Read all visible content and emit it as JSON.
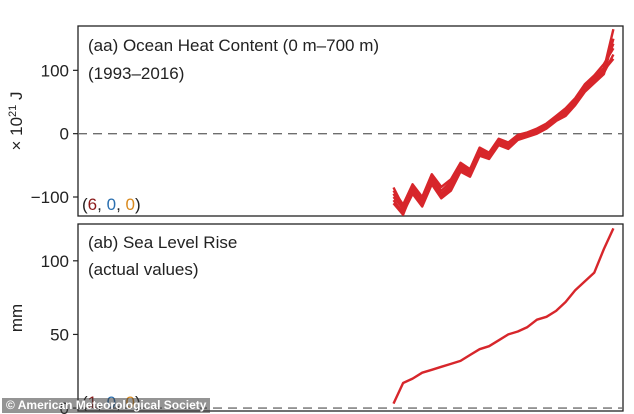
{
  "credit": "© American Meteorological Society",
  "colors": {
    "series": "#d7262b",
    "zero_line": "#6e6e6e",
    "count_red": "#8b1a1a",
    "count_blue": "#2a6fb0",
    "count_orange": "#d98a1e",
    "frame": "#222222"
  },
  "chart_data": [
    {
      "type": "line",
      "panel_title": "(aa) Ocean Heat Content (0 m–700 m)",
      "subtitle": "(1993–2016)",
      "ylabel_main": "× 10",
      "ylabel_exp": "21",
      "ylabel_unit": " J",
      "yticks": [
        100,
        0,
        -100
      ],
      "ylim": [
        -130,
        170
      ],
      "xlim": [
        1960,
        2017
      ],
      "zero_line": true,
      "counts": {
        "red": "6",
        "blue": "0",
        "orange": "0"
      },
      "x": [
        1993,
        1994,
        1995,
        1996,
        1997,
        1998,
        1999,
        2000,
        2001,
        2002,
        2003,
        2004,
        2005,
        2006,
        2007,
        2008,
        2009,
        2010,
        2011,
        2012,
        2013,
        2014,
        2015,
        2016
      ],
      "series": [
        {
          "values": [
            -85,
            -115,
            -88,
            -108,
            -72,
            -95,
            -82,
            -52,
            -62,
            -28,
            -34,
            -12,
            -18,
            -4,
            0,
            5,
            12,
            26,
            34,
            52,
            72,
            85,
            100,
            118
          ]
        },
        {
          "values": [
            -90,
            -112,
            -80,
            -100,
            -64,
            -84,
            -72,
            -46,
            -56,
            -22,
            -30,
            -8,
            -14,
            -2,
            2,
            8,
            16,
            28,
            40,
            56,
            78,
            92,
            110,
            135
          ]
        },
        {
          "values": [
            -95,
            -120,
            -92,
            -110,
            -78,
            -98,
            -86,
            -56,
            -66,
            -32,
            -38,
            -16,
            -22,
            -8,
            -3,
            2,
            9,
            22,
            30,
            47,
            68,
            82,
            96,
            125
          ]
        },
        {
          "values": [
            -100,
            -118,
            -84,
            -104,
            -68,
            -90,
            -76,
            -50,
            -58,
            -26,
            -32,
            -10,
            -16,
            -5,
            1,
            6,
            14,
            24,
            36,
            54,
            76,
            88,
            104,
            142
          ]
        },
        {
          "values": [
            -105,
            -125,
            -95,
            -115,
            -80,
            -102,
            -90,
            -60,
            -68,
            -35,
            -40,
            -18,
            -24,
            -10,
            -5,
            0,
            8,
            20,
            28,
            45,
            66,
            80,
            94,
            150
          ]
        },
        {
          "values": [
            -110,
            -128,
            -90,
            -112,
            -75,
            -96,
            -80,
            -55,
            -63,
            -30,
            -36,
            -14,
            -20,
            -6,
            -1,
            4,
            10,
            23,
            33,
            50,
            70,
            86,
            102,
            165
          ]
        }
      ]
    },
    {
      "type": "line",
      "panel_title": "(ab) Sea Level Rise",
      "subtitle": "(actual values)",
      "ylabel_main": "mm",
      "yticks": [
        100,
        50,
        0
      ],
      "ylim": [
        -2,
        125
      ],
      "xlim": [
        1960,
        2017
      ],
      "zero_line": true,
      "counts": {
        "red": "1",
        "blue": "0",
        "orange": "0"
      },
      "x": [
        1993,
        1994,
        1995,
        1996,
        1997,
        1998,
        1999,
        2000,
        2001,
        2002,
        2003,
        2004,
        2005,
        2006,
        2007,
        2008,
        2009,
        2010,
        2011,
        2012,
        2013,
        2014,
        2015,
        2016
      ],
      "series": [
        {
          "values": [
            3,
            17,
            20,
            24,
            26,
            28,
            30,
            32,
            36,
            40,
            42,
            46,
            50,
            52,
            55,
            60,
            62,
            66,
            72,
            80,
            86,
            92,
            108,
            122
          ]
        }
      ]
    }
  ]
}
